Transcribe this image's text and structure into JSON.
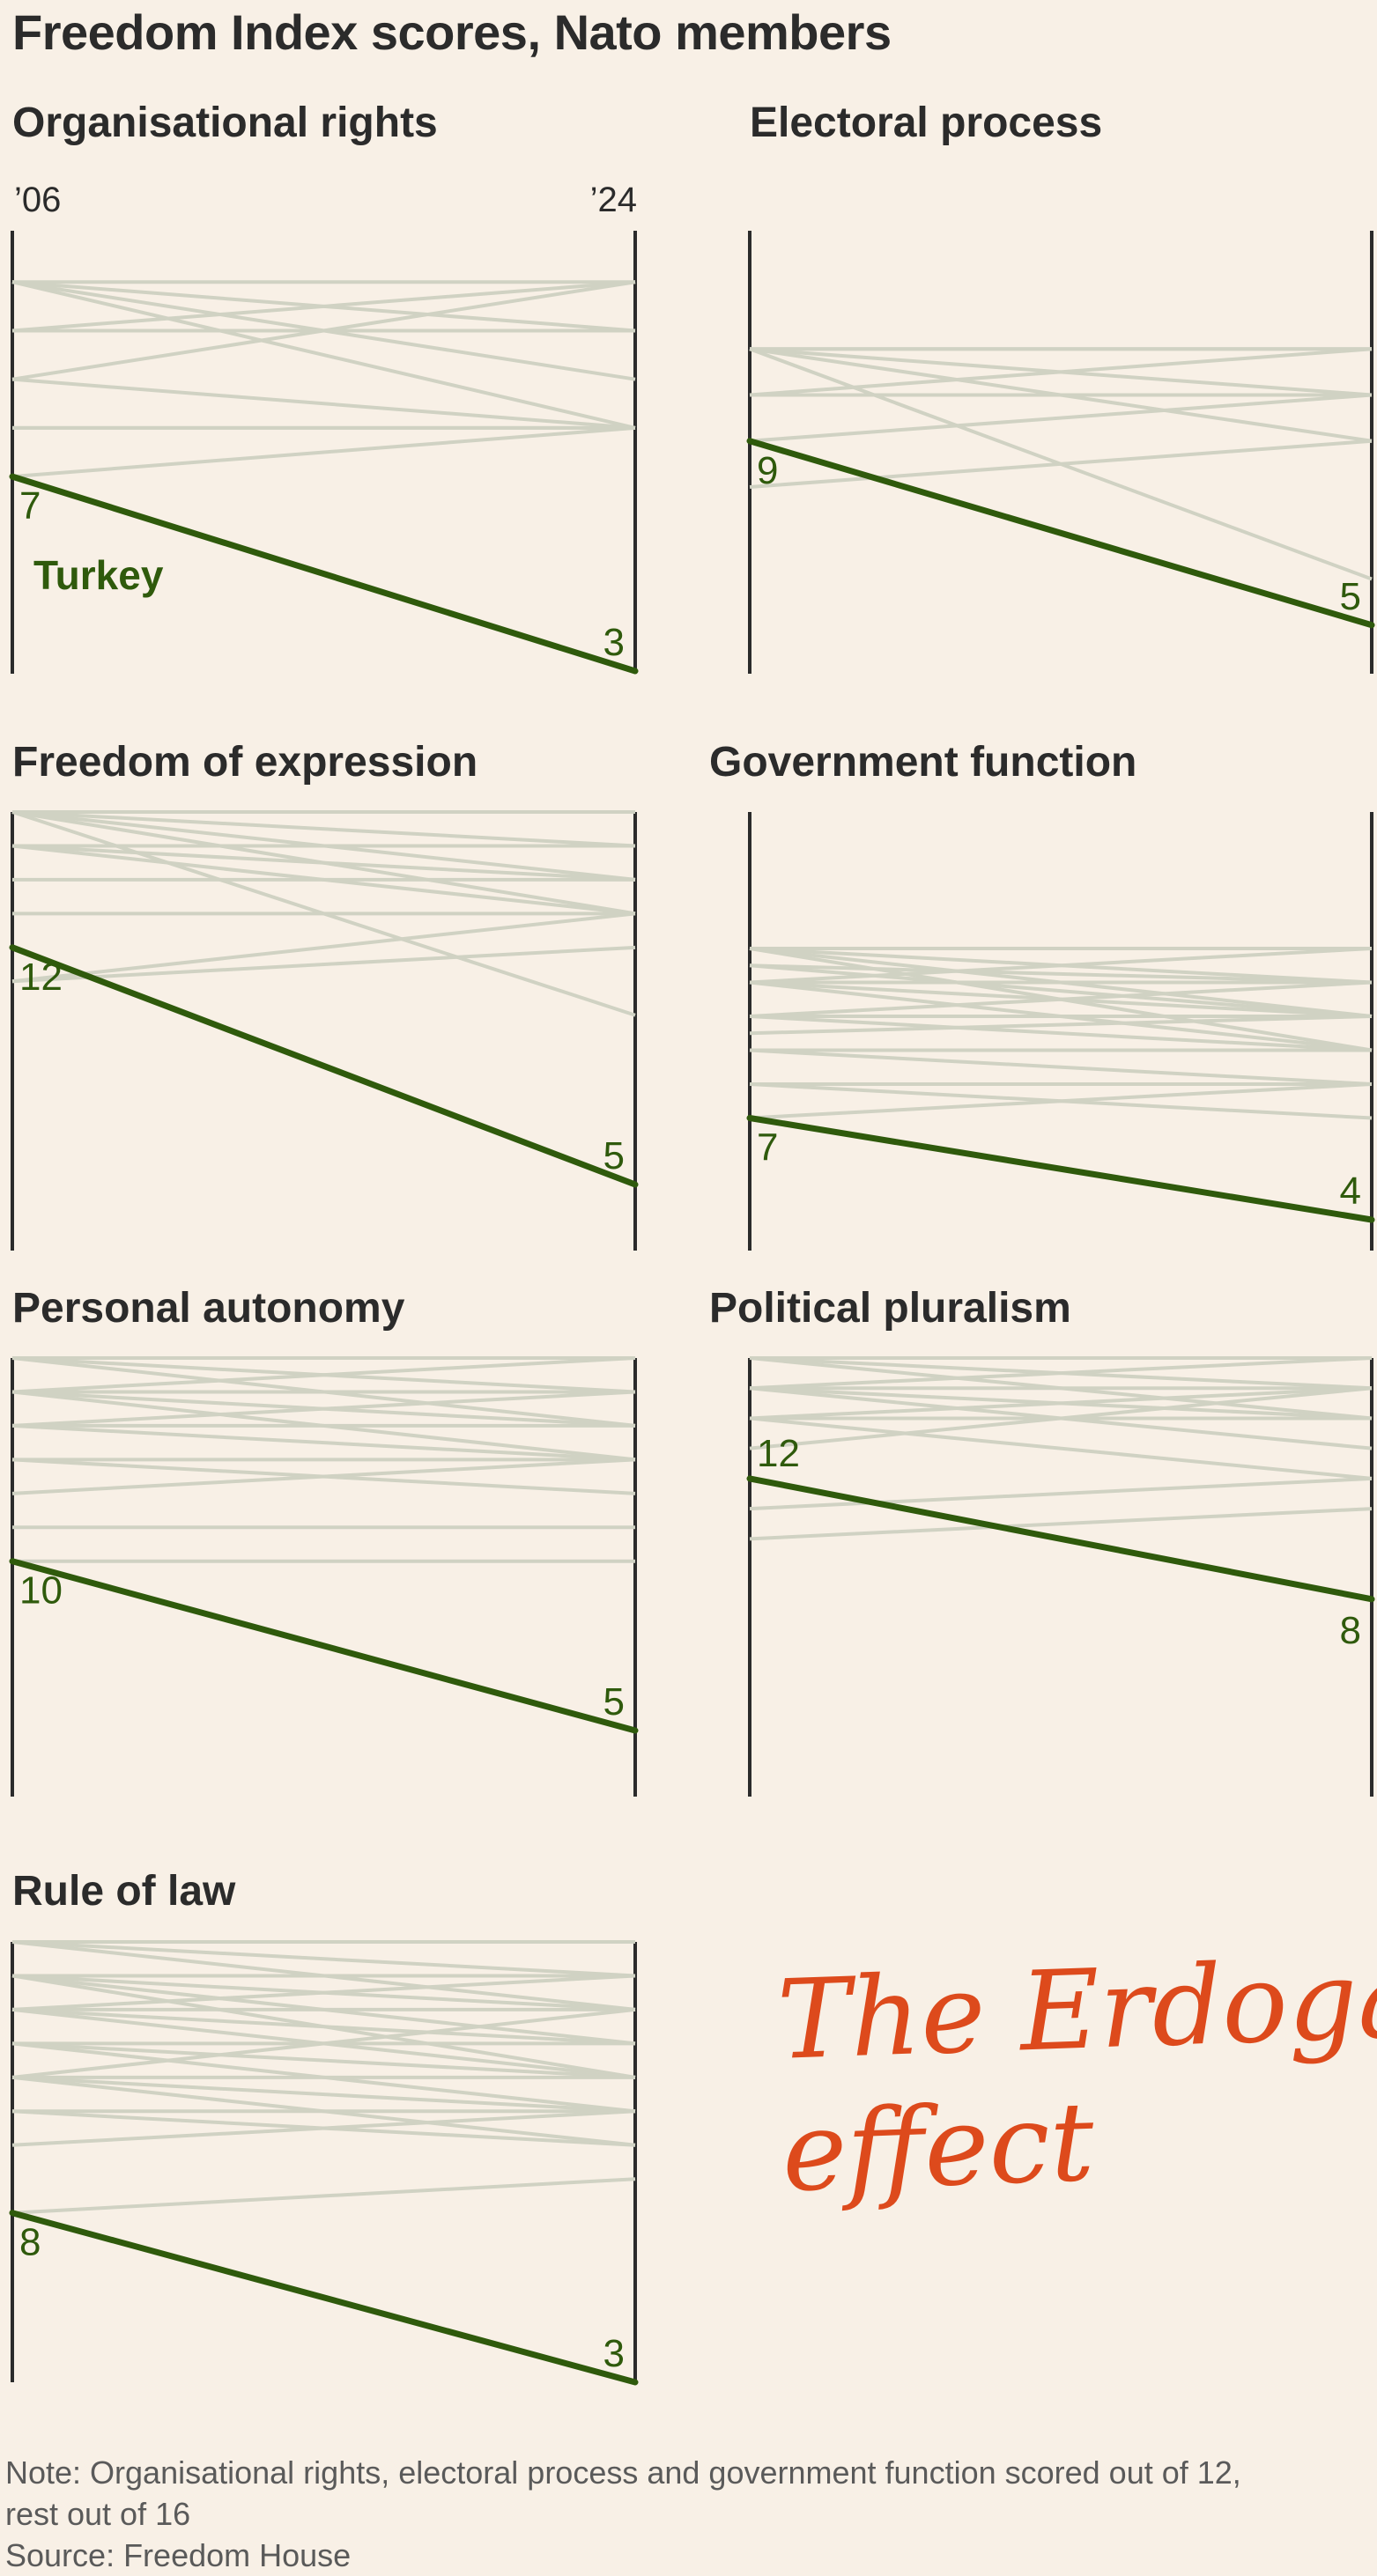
{
  "title": "Freedom Index scores, Nato members",
  "year_start_label": "’06",
  "year_end_label": "’24",
  "highlight_country": "Turkey",
  "annotation": {
    "line1": "The Erdogan",
    "line2": "effect"
  },
  "note_lines": [
    "Note: Organisational rights, electoral process and government function scored out of 12,",
    "rest out of 16",
    "Source: Freedom House"
  ],
  "colors": {
    "background": "#f8f0e6",
    "highlight": "#2f5a0c",
    "others": "#d0d2c3",
    "axis": "#2b2b2b",
    "annotation": "#dd4a1c"
  },
  "chart_data": [
    {
      "type": "line",
      "title": "Organisational rights",
      "x": [
        2006,
        2024
      ],
      "ylim": [
        3,
        12
      ],
      "highlight": {
        "name": "Turkey",
        "values": [
          7,
          3
        ]
      },
      "others": [
        [
          11,
          11
        ],
        [
          11,
          10
        ],
        [
          11,
          9
        ],
        [
          10,
          11
        ],
        [
          10,
          10
        ],
        [
          9,
          11
        ],
        [
          8,
          8
        ],
        [
          8,
          8
        ],
        [
          7,
          8
        ],
        [
          11,
          8
        ],
        [
          9,
          8
        ]
      ]
    },
    {
      "type": "line",
      "title": "Electoral process",
      "x": [
        2006,
        2024
      ],
      "ylim": [
        4,
        12
      ],
      "highlight": {
        "name": "Turkey",
        "values": [
          9,
          5
        ]
      },
      "others": [
        [
          11,
          11
        ],
        [
          11,
          10
        ],
        [
          11,
          9
        ],
        [
          11,
          6
        ],
        [
          10,
          11
        ],
        [
          10,
          10
        ],
        [
          9,
          10
        ],
        [
          8,
          9
        ],
        [
          11,
          11
        ]
      ]
    },
    {
      "type": "line",
      "title": "Freedom of expression",
      "x": [
        2006,
        2024
      ],
      "ylim": [
        5,
        16
      ],
      "highlight": {
        "name": "Turkey",
        "values": [
          12,
          5
        ]
      },
      "others": [
        [
          16,
          16
        ],
        [
          16,
          15
        ],
        [
          16,
          14
        ],
        [
          16,
          13
        ],
        [
          16,
          10
        ],
        [
          15,
          15
        ],
        [
          15,
          14
        ],
        [
          15,
          13
        ],
        [
          14,
          14
        ],
        [
          13,
          13
        ],
        [
          11,
          12
        ],
        [
          11,
          13
        ]
      ]
    },
    {
      "type": "line",
      "title": "Government function",
      "x": [
        2006,
        2024
      ],
      "ylim": [
        4,
        12
      ],
      "highlight": {
        "name": "Turkey",
        "values": [
          7,
          4
        ]
      },
      "others": [
        [
          12,
          12
        ],
        [
          12,
          11
        ],
        [
          12,
          10
        ],
        [
          12,
          9
        ],
        [
          11.5,
          11
        ],
        [
          11.5,
          10
        ],
        [
          11,
          12
        ],
        [
          11,
          11
        ],
        [
          11,
          10
        ],
        [
          11,
          9
        ],
        [
          10,
          11
        ],
        [
          10,
          10
        ],
        [
          10,
          9
        ],
        [
          9.5,
          10
        ],
        [
          9,
          9
        ],
        [
          8,
          8
        ],
        [
          8,
          7
        ],
        [
          9,
          8
        ],
        [
          7,
          8
        ]
      ]
    },
    {
      "type": "line",
      "title": "Personal autonomy",
      "x": [
        2006,
        2024
      ],
      "ylim": [
        5,
        16
      ],
      "highlight": {
        "name": "Turkey",
        "values": [
          10,
          5
        ]
      },
      "others": [
        [
          16,
          16
        ],
        [
          16,
          15
        ],
        [
          16,
          14
        ],
        [
          15,
          16
        ],
        [
          15,
          15
        ],
        [
          15,
          14
        ],
        [
          14,
          15
        ],
        [
          14,
          14
        ],
        [
          14,
          13
        ],
        [
          13,
          13
        ],
        [
          13,
          12
        ],
        [
          12,
          13
        ],
        [
          11,
          11
        ],
        [
          10,
          10
        ],
        [
          15,
          13
        ]
      ]
    },
    {
      "type": "line",
      "title": "Political pluralism",
      "x": [
        2006,
        2024
      ],
      "ylim": [
        7,
        16
      ],
      "highlight": {
        "name": "Turkey",
        "values": [
          12,
          8
        ]
      },
      "others": [
        [
          16,
          16
        ],
        [
          16,
          15
        ],
        [
          16,
          14
        ],
        [
          15,
          16
        ],
        [
          15,
          15
        ],
        [
          15,
          14
        ],
        [
          14,
          15
        ],
        [
          14,
          14
        ],
        [
          14,
          12
        ],
        [
          11,
          12
        ],
        [
          10,
          11
        ],
        [
          15,
          13
        ],
        [
          13,
          15
        ]
      ]
    },
    {
      "type": "line",
      "title": "Rule of law",
      "x": [
        2006,
        2024
      ],
      "ylim": [
        3,
        16
      ],
      "highlight": {
        "name": "Turkey",
        "values": [
          8,
          3
        ]
      },
      "others": [
        [
          16,
          16
        ],
        [
          16,
          15
        ],
        [
          16,
          14
        ],
        [
          15,
          15
        ],
        [
          15,
          14
        ],
        [
          15,
          13
        ],
        [
          14,
          15
        ],
        [
          14,
          14
        ],
        [
          14,
          13
        ],
        [
          14,
          12
        ],
        [
          13,
          13
        ],
        [
          13,
          12
        ],
        [
          13,
          11
        ],
        [
          12,
          12
        ],
        [
          12,
          11
        ],
        [
          12,
          10
        ],
        [
          11,
          11
        ],
        [
          11,
          10
        ],
        [
          10,
          11
        ],
        [
          8,
          9
        ],
        [
          15,
          12
        ],
        [
          12,
          14
        ]
      ]
    }
  ]
}
